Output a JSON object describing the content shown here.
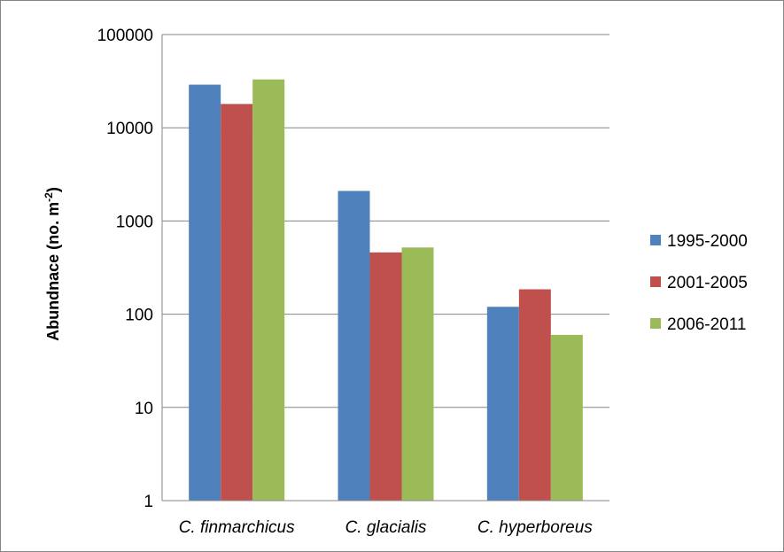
{
  "chart_data": {
    "type": "bar",
    "title": "",
    "xlabel": "",
    "ylabel": "Abundnace (no. m",
    "ylabel_superscript": "-2",
    "ylabel_suffix": ")",
    "yscale": "log",
    "ylim": [
      1,
      100000
    ],
    "yticks": [
      1,
      10,
      100,
      1000,
      10000,
      100000
    ],
    "ytick_labels": [
      "1",
      "10",
      "100",
      "1000",
      "10000",
      "100000"
    ],
    "grid": true,
    "legend_position": "right",
    "categories": [
      "C. finmarchicus",
      "C. glacialis",
      "C. hyperboreus"
    ],
    "series": [
      {
        "name": "1995-2000",
        "color": "#4F81BD",
        "values": [
          29000,
          2100,
          120
        ]
      },
      {
        "name": "2001-2005",
        "color": "#C0504D",
        "values": [
          18000,
          460,
          185
        ]
      },
      {
        "name": "2006-2011",
        "color": "#9BBB59",
        "values": [
          33000,
          520,
          60
        ]
      }
    ]
  }
}
